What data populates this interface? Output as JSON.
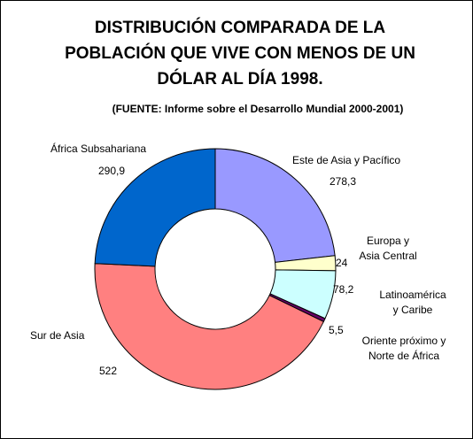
{
  "chart_data": {
    "type": "pie",
    "title_lines": [
      "DISTRIBUCIÓN COMPARADA DE LA",
      "POBLACIÓN QUE VIVE CON MENOS DE UN",
      "DÓLAR AL DÍA 1998."
    ],
    "subtitle": "(FUENTE: Informe sobre el Desarrollo Mundial 2000-2001)",
    "donut": true,
    "slices": [
      {
        "name_lines": [
          "Este de Asia y Pacífico"
        ],
        "value": 278.3,
        "value_label": "278,3",
        "color": "#9999ff"
      },
      {
        "name_lines": [
          "Europa y",
          "Asia Central"
        ],
        "value": 24,
        "value_label": "24",
        "color": "#ffffcc"
      },
      {
        "name_lines": [
          "Latinoamérica",
          "y Caribe"
        ],
        "value": 78.2,
        "value_label": "78,2",
        "color": "#ccffff"
      },
      {
        "name_lines": [
          "Oriente próximo y",
          "Norte de África"
        ],
        "value": 5.5,
        "value_label": "5,5",
        "color": "#660066"
      },
      {
        "name_lines": [
          "Sur de Asia"
        ],
        "value": 522,
        "value_label": "522",
        "color": "#ff8080"
      },
      {
        "name_lines": [
          "África Subsahariana"
        ],
        "value": 290.9,
        "value_label": "290,9",
        "color": "#0066cc"
      }
    ]
  }
}
